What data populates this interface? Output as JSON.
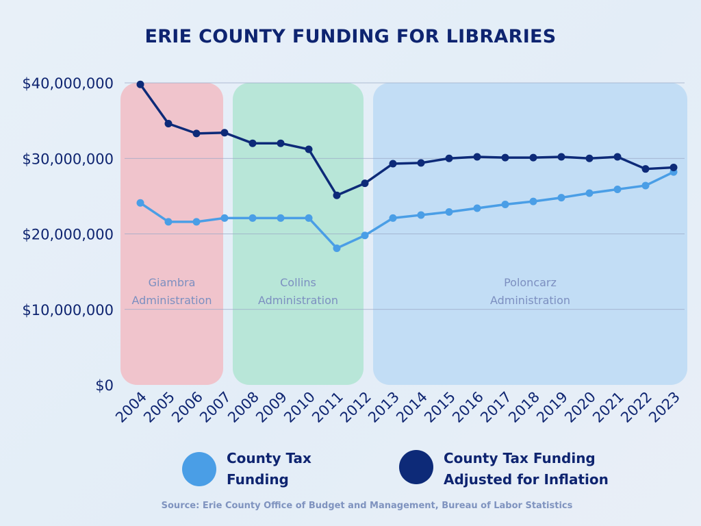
{
  "chart_data": {
    "type": "line",
    "title": "ERIE COUNTY FUNDING FOR LIBRARIES",
    "x": [
      "2004",
      "2005",
      "2006",
      "2007",
      "2008",
      "2009",
      "2010",
      "2011",
      "2012",
      "2013",
      "2014",
      "2015",
      "2016",
      "2017",
      "2018",
      "2019",
      "2020",
      "2021",
      "2022",
      "2023"
    ],
    "series": [
      {
        "name": "County Tax Funding",
        "color": "#4a9ee6",
        "values": [
          24100000,
          21600000,
          21600000,
          22100000,
          22100000,
          22100000,
          22100000,
          18100000,
          19800000,
          22100000,
          22500000,
          22900000,
          23400000,
          23900000,
          24300000,
          24800000,
          25400000,
          25900000,
          26400000,
          28200000
        ]
      },
      {
        "name": "County Tax Funding Adjusted for Inflation",
        "color": "#0d2a78",
        "values": [
          39800000,
          34600000,
          33300000,
          33400000,
          32000000,
          32000000,
          31200000,
          25100000,
          26700000,
          29300000,
          29400000,
          30000000,
          30200000,
          30100000,
          30100000,
          30200000,
          30000000,
          30200000,
          28600000,
          28800000
        ]
      }
    ],
    "y_ticks": [
      "$0",
      "$10,000,000",
      "$20,000,000",
      "$30,000,000",
      "$40,000,000"
    ],
    "ylim": [
      0,
      40000000
    ],
    "grid": true,
    "legend_position": "bottom",
    "annotations": [
      {
        "line1": "Giambra",
        "line2": "Administration",
        "from": "2004",
        "to": "2007",
        "color": "#f0c4cc"
      },
      {
        "line1": "Collins",
        "line2": "Administration",
        "from": "2008",
        "to": "2012",
        "color": "#b8e6d8"
      },
      {
        "line1": "Poloncarz",
        "line2": "Administration",
        "from": "2013",
        "to": "2023",
        "color": "#c2ddf5"
      }
    ],
    "source": "Source: Erie County Office of Budget and Management, Bureau of Labor Statistics"
  }
}
